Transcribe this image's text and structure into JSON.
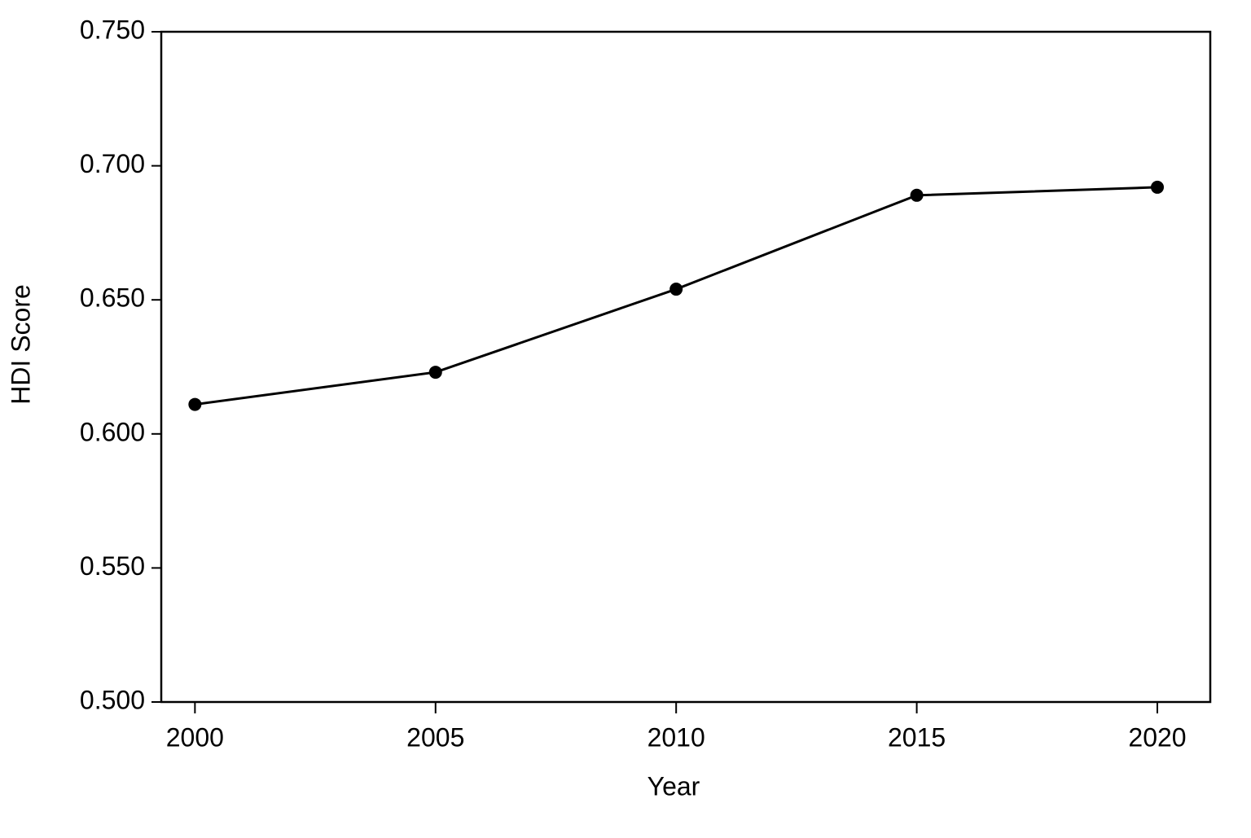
{
  "chart_data": {
    "type": "line",
    "x_label": "Year",
    "y_label": "HDI Score",
    "x": [
      2000,
      2005,
      2010,
      2015,
      2020
    ],
    "series": [
      {
        "name": "HDI Score",
        "color": "#000000",
        "values": [
          0.611,
          0.623,
          0.654,
          0.689,
          0.692
        ]
      }
    ],
    "xlim": [
      1999.3,
      2021.1
    ],
    "xticks": [
      2000,
      2005,
      2010,
      2015,
      2020
    ],
    "ylim": [
      0.5,
      0.75
    ],
    "yticks": [
      {
        "value": 0.5,
        "label": "0.500"
      },
      {
        "value": 0.55,
        "label": "0.550"
      },
      {
        "value": 0.6,
        "label": "0.600"
      },
      {
        "value": 0.65,
        "label": "0.650"
      },
      {
        "value": 0.7,
        "label": "0.700"
      },
      {
        "value": 0.75,
        "label": "0.750"
      }
    ],
    "grid": false
  }
}
